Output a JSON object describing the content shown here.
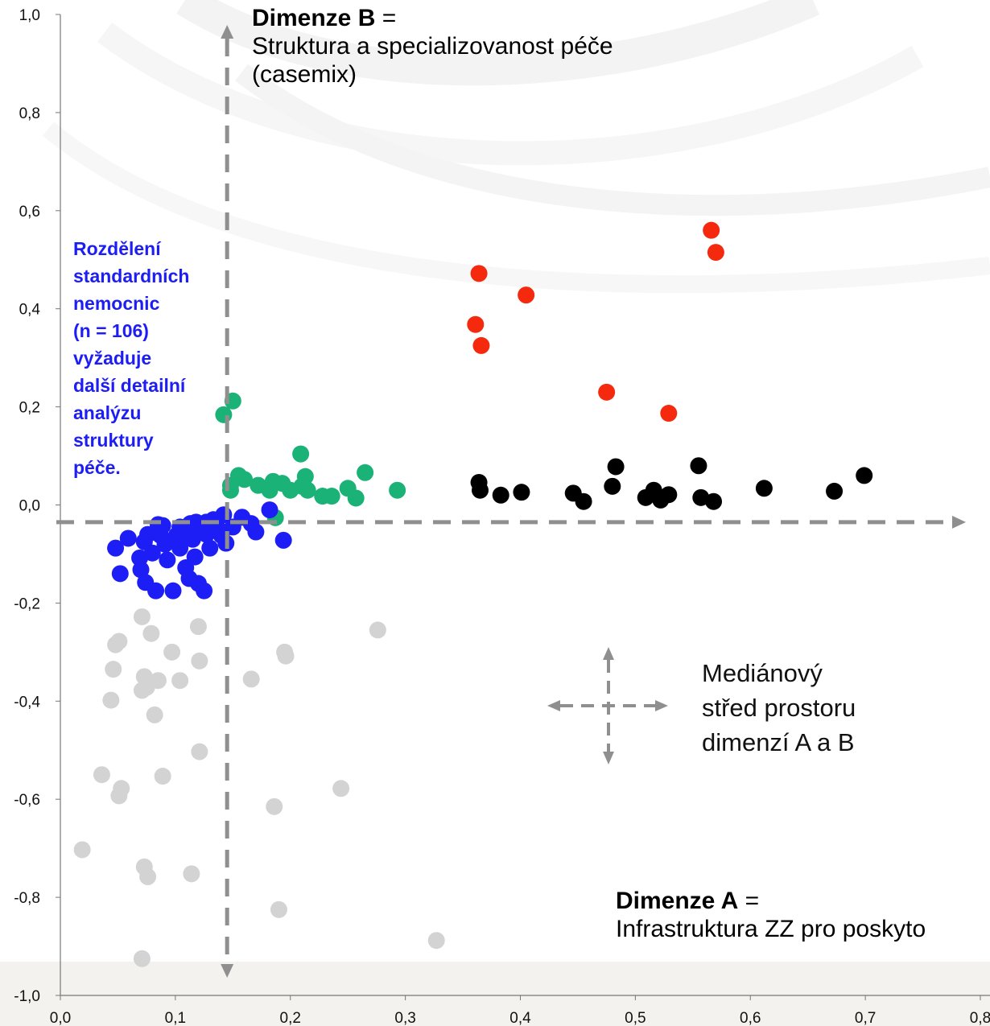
{
  "colors": {
    "red": "#f5290e",
    "black": "#000000",
    "green": "#1ab277",
    "blue": "#1d1df5",
    "grey": "#d3d3d3",
    "dashed_axis": "#8f8f8f"
  },
  "labels": {
    "dim_b_bold": "Dimenze B",
    "dim_b_eq": " =",
    "dim_b_line2": "Struktura a specializovanost péče",
    "dim_b_line3": "(casemix)",
    "dim_a_bold": "Dimenze A",
    "dim_a_eq": " =",
    "dim_a_line2": "Infrastruktura ZZ pro poskyto",
    "blue_note": "Rozdělení\nstandardních\nnemocnic\n(n = 106)\nvyžaduje\ndalší detailní\nanalýzu\nstruktury\npéče.",
    "median_note": "Mediánový\nstřed prostoru\ndimenzí A a B"
  },
  "chart_data": {
    "type": "scatter",
    "title": "",
    "xlabel": "",
    "ylabel": "",
    "xlim": [
      0.0,
      0.8
    ],
    "ylim": [
      -1.0,
      1.0
    ],
    "x_ticks": [
      "0,0",
      "0,1",
      "0,2",
      "0,3",
      "0,4",
      "0,5",
      "0,6",
      "0,7",
      "0,8"
    ],
    "y_ticks": [
      "-1,0",
      "-0,8",
      "-0,6",
      "-0,4",
      "-0,2",
      "0,0",
      "0,2",
      "0,4",
      "0,6",
      "0,8",
      "1,0"
    ],
    "grid": false,
    "median_center": {
      "x": 0.145,
      "y": -0.035
    },
    "series": [
      {
        "color": "red",
        "points": [
          [
            0.566,
            0.56
          ],
          [
            0.57,
            0.515
          ],
          [
            0.364,
            0.472
          ],
          [
            0.405,
            0.428
          ],
          [
            0.361,
            0.368
          ],
          [
            0.366,
            0.325
          ],
          [
            0.475,
            0.23
          ],
          [
            0.529,
            0.187
          ]
        ]
      },
      {
        "color": "black",
        "points": [
          [
            0.699,
            0.06
          ],
          [
            0.673,
            0.028
          ],
          [
            0.612,
            0.034
          ],
          [
            0.555,
            0.08
          ],
          [
            0.483,
            0.078
          ],
          [
            0.364,
            0.046
          ],
          [
            0.365,
            0.03
          ],
          [
            0.383,
            0.02
          ],
          [
            0.401,
            0.026
          ],
          [
            0.446,
            0.024
          ],
          [
            0.455,
            0.007
          ],
          [
            0.48,
            0.038
          ],
          [
            0.509,
            0.015
          ],
          [
            0.516,
            0.03
          ],
          [
            0.522,
            0.01
          ],
          [
            0.529,
            0.021
          ],
          [
            0.557,
            0.015
          ],
          [
            0.568,
            0.007
          ]
        ]
      },
      {
        "color": "green",
        "points": [
          [
            0.15,
            0.212
          ],
          [
            0.142,
            0.184
          ],
          [
            0.209,
            0.104
          ],
          [
            0.265,
            0.066
          ],
          [
            0.155,
            0.06
          ],
          [
            0.213,
            0.058
          ],
          [
            0.148,
            0.04
          ],
          [
            0.16,
            0.052
          ],
          [
            0.172,
            0.04
          ],
          [
            0.182,
            0.03
          ],
          [
            0.185,
            0.048
          ],
          [
            0.193,
            0.044
          ],
          [
            0.2,
            0.03
          ],
          [
            0.21,
            0.038
          ],
          [
            0.215,
            0.03
          ],
          [
            0.228,
            0.018
          ],
          [
            0.236,
            0.018
          ],
          [
            0.25,
            0.034
          ],
          [
            0.257,
            0.014
          ],
          [
            0.293,
            0.03
          ],
          [
            0.187,
            -0.026
          ],
          [
            0.148,
            0.03
          ]
        ]
      },
      {
        "color": "blue",
        "points": [
          [
            0.048,
            -0.088
          ],
          [
            0.052,
            -0.14
          ],
          [
            0.059,
            -0.068
          ],
          [
            0.069,
            -0.108
          ],
          [
            0.07,
            -0.132
          ],
          [
            0.073,
            -0.075
          ],
          [
            0.074,
            -0.158
          ],
          [
            0.076,
            -0.06
          ],
          [
            0.08,
            -0.098
          ],
          [
            0.083,
            -0.175
          ],
          [
            0.087,
            -0.062
          ],
          [
            0.089,
            -0.042
          ],
          [
            0.091,
            -0.08
          ],
          [
            0.093,
            -0.112
          ],
          [
            0.098,
            -0.175
          ],
          [
            0.101,
            -0.062
          ],
          [
            0.104,
            -0.088
          ],
          [
            0.107,
            -0.068
          ],
          [
            0.109,
            -0.128
          ],
          [
            0.11,
            -0.05
          ],
          [
            0.112,
            -0.15
          ],
          [
            0.113,
            -0.038
          ],
          [
            0.115,
            -0.07
          ],
          [
            0.117,
            -0.106
          ],
          [
            0.119,
            -0.058
          ],
          [
            0.12,
            -0.16
          ],
          [
            0.122,
            -0.042
          ],
          [
            0.125,
            -0.175
          ],
          [
            0.127,
            -0.06
          ],
          [
            0.13,
            -0.088
          ],
          [
            0.133,
            -0.03
          ],
          [
            0.137,
            -0.048
          ],
          [
            0.14,
            -0.062
          ],
          [
            0.142,
            -0.02
          ],
          [
            0.144,
            -0.078
          ],
          [
            0.15,
            -0.045
          ],
          [
            0.158,
            -0.025
          ],
          [
            0.166,
            -0.038
          ],
          [
            0.17,
            -0.055
          ],
          [
            0.182,
            -0.01
          ],
          [
            0.194,
            -0.072
          ],
          [
            0.104,
            -0.045
          ],
          [
            0.118,
            -0.035
          ],
          [
            0.127,
            -0.035
          ],
          [
            0.085,
            -0.04
          ]
        ]
      },
      {
        "color": "grey",
        "points": [
          [
            0.071,
            -0.228
          ],
          [
            0.079,
            -0.262
          ],
          [
            0.12,
            -0.248
          ],
          [
            0.276,
            -0.255
          ],
          [
            0.051,
            -0.278
          ],
          [
            0.048,
            -0.285
          ],
          [
            0.097,
            -0.3
          ],
          [
            0.121,
            -0.318
          ],
          [
            0.195,
            -0.3
          ],
          [
            0.196,
            -0.308
          ],
          [
            0.046,
            -0.335
          ],
          [
            0.073,
            -0.35
          ],
          [
            0.085,
            -0.358
          ],
          [
            0.104,
            -0.358
          ],
          [
            0.166,
            -0.355
          ],
          [
            0.075,
            -0.372
          ],
          [
            0.071,
            -0.378
          ],
          [
            0.044,
            -0.398
          ],
          [
            0.082,
            -0.428
          ],
          [
            0.121,
            -0.503
          ],
          [
            0.036,
            -0.55
          ],
          [
            0.089,
            -0.553
          ],
          [
            0.053,
            -0.578
          ],
          [
            0.051,
            -0.593
          ],
          [
            0.244,
            -0.578
          ],
          [
            0.186,
            -0.615
          ],
          [
            0.019,
            -0.703
          ],
          [
            0.073,
            -0.738
          ],
          [
            0.076,
            -0.758
          ],
          [
            0.114,
            -0.752
          ],
          [
            0.19,
            -0.825
          ],
          [
            0.327,
            -0.888
          ],
          [
            0.071,
            -0.925
          ]
        ]
      }
    ]
  }
}
